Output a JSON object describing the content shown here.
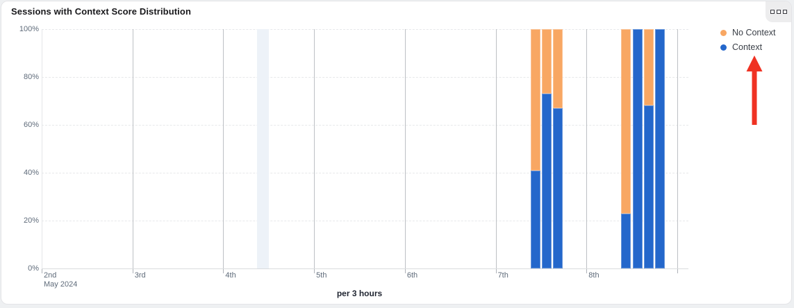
{
  "card": {
    "title": "Sessions with Context Score Distribution",
    "menu_button": {
      "icon": "grid-squares-icon"
    }
  },
  "legend": {
    "items": [
      {
        "label": "No Context",
        "color": "#F8A763"
      },
      {
        "label": "Context",
        "color": "#2467CB"
      }
    ]
  },
  "annotation": {
    "type": "red-arrow-up",
    "points_to": "Context",
    "color": "#EF3223"
  },
  "chart_data": {
    "type": "bar",
    "stacked": true,
    "title": "Sessions with Context Score Distribution",
    "xlabel": "per 3 hours",
    "ylabel": "",
    "ylim": [
      0,
      100
    ],
    "grid": true,
    "legend_position": "top-right",
    "y_tick_values": [
      0,
      20,
      40,
      60,
      80,
      100
    ],
    "y_tick_labels": [
      "0%",
      "20%",
      "40%",
      "60%",
      "80%",
      "100%"
    ],
    "x_tick_labels": [
      "2nd",
      "3rd",
      "4th",
      "5th",
      "6th",
      "7th",
      "8th"
    ],
    "x_first_tick_sublabel": "May 2024",
    "slots_per_day": 8,
    "series_names": [
      "No Context",
      "Context"
    ],
    "bars": [
      {
        "day_label": "7th",
        "day_index": 5,
        "slot_index": 3,
        "context_pct": 41,
        "no_context_pct": 59
      },
      {
        "day_label": "7th",
        "day_index": 5,
        "slot_index": 4,
        "context_pct": 73,
        "no_context_pct": 27
      },
      {
        "day_label": "7th",
        "day_index": 5,
        "slot_index": 5,
        "context_pct": 67,
        "no_context_pct": 33
      },
      {
        "day_label": "8th",
        "day_index": 6,
        "slot_index": 3,
        "context_pct": 23,
        "no_context_pct": 77
      },
      {
        "day_label": "8th",
        "day_index": 6,
        "slot_index": 4,
        "context_pct": 100,
        "no_context_pct": 0
      },
      {
        "day_label": "8th",
        "day_index": 6,
        "slot_index": 5,
        "context_pct": 68,
        "no_context_pct": 32
      },
      {
        "day_label": "8th",
        "day_index": 6,
        "slot_index": 6,
        "context_pct": 100,
        "no_context_pct": 0
      }
    ],
    "highlight_band": {
      "day_index": 2,
      "slot_index": 3
    },
    "colors": {
      "context": "#2467CB",
      "no_context": "#F8A763",
      "band": "#EDF2F8",
      "grid_vertical": "#BDC0C4",
      "grid_horizontal": "#E7E8EA",
      "axis_line": "#D9DBDE",
      "tick": "#AEB2B8",
      "axis_text": "#5F6B7A"
    }
  }
}
